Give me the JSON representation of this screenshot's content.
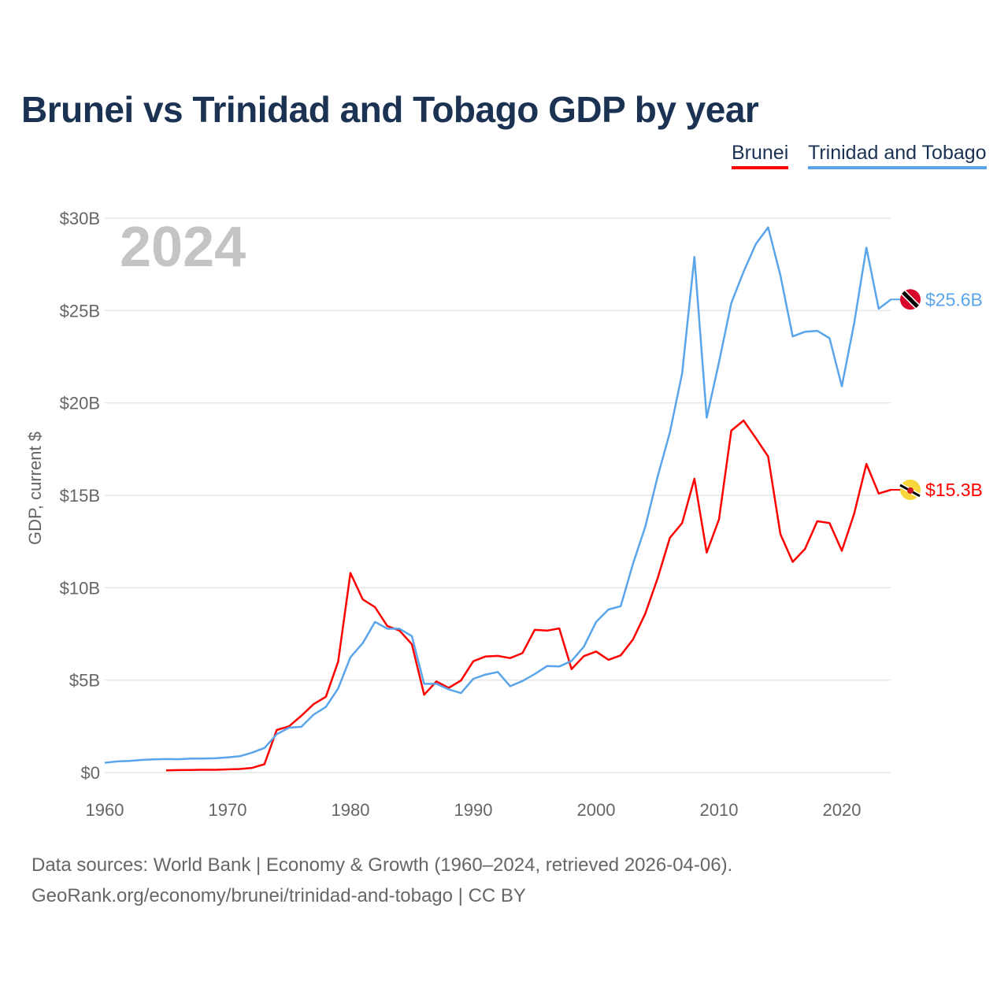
{
  "title": "Brunei vs Trinidad and Tobago GDP by year",
  "legend": [
    {
      "label": "Brunei",
      "color": "#ff0000"
    },
    {
      "label": "Trinidad and Tobago",
      "color": "#5aa5ea"
    }
  ],
  "year_label": "2024",
  "footer": {
    "line1": "Data sources: World Bank | Economy & Growth (1960–2024, retrieved 2026-04-06).",
    "line2": "GeoRank.org/economy/brunei/trinidad-and-tobago | CC BY"
  },
  "chart_data": {
    "type": "line",
    "title": "Brunei vs Trinidad and Tobago GDP by year",
    "xlabel": "",
    "ylabel": "GDP, current $",
    "xlim": [
      1960,
      2024
    ],
    "ylim": [
      0,
      30
    ],
    "x_ticks": [
      1960,
      1970,
      1980,
      1990,
      2000,
      2010,
      2020
    ],
    "y_ticks": [
      0,
      5,
      10,
      15,
      20,
      25,
      30
    ],
    "y_tick_labels": [
      "$0",
      "$5B",
      "$10B",
      "$15B",
      "$20B",
      "$25B",
      "$30B"
    ],
    "grid": true,
    "legend_position": "top-right",
    "series": [
      {
        "name": "Brunei",
        "color": "#ff0000",
        "start_year": 1965,
        "end_label": "$15.3B",
        "flag": "brunei",
        "values": [
          0.12,
          0.13,
          0.14,
          0.15,
          0.15,
          0.17,
          0.19,
          0.25,
          0.45,
          2.3,
          2.5,
          3.07,
          3.7,
          4.1,
          6.0,
          10.8,
          9.37,
          8.95,
          7.93,
          7.68,
          6.94,
          4.21,
          4.93,
          4.58,
          4.98,
          6.02,
          6.28,
          6.31,
          6.19,
          6.46,
          7.72,
          7.68,
          7.8,
          5.6,
          6.3,
          6.55,
          6.1,
          6.34,
          7.2,
          8.6,
          10.5,
          12.7,
          13.5,
          15.9,
          11.9,
          13.7,
          18.5,
          19.05,
          18.1,
          17.1,
          12.9,
          11.4,
          12.1,
          13.6,
          13.5,
          12.0,
          14.0,
          16.7,
          15.1,
          15.3
        ]
      },
      {
        "name": "Trinidad and Tobago",
        "color": "#5aa5ea",
        "start_year": 1960,
        "end_label": "$25.6B",
        "flag": "trinidad",
        "values": [
          0.53,
          0.6,
          0.63,
          0.68,
          0.71,
          0.73,
          0.72,
          0.76,
          0.76,
          0.77,
          0.82,
          0.88,
          1.08,
          1.33,
          2.07,
          2.43,
          2.47,
          3.13,
          3.55,
          4.55,
          6.24,
          7.0,
          8.15,
          7.78,
          7.78,
          7.38,
          4.8,
          4.8,
          4.5,
          4.3,
          5.07,
          5.3,
          5.44,
          4.67,
          4.95,
          5.33,
          5.76,
          5.74,
          6.04,
          6.81,
          8.15,
          8.82,
          9.0,
          11.3,
          13.3,
          16.0,
          18.4,
          21.6,
          27.9,
          19.2,
          22.2,
          25.4,
          27.1,
          28.6,
          29.5,
          26.9,
          23.6,
          23.85,
          23.9,
          23.5,
          20.9,
          24.3,
          28.4,
          25.1,
          25.6
        ]
      }
    ]
  }
}
